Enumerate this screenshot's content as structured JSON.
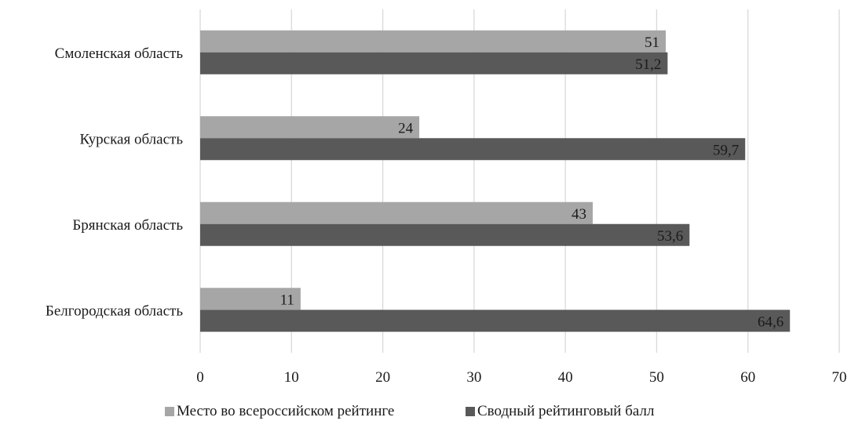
{
  "chart_data": {
    "type": "bar",
    "orientation": "horizontal",
    "categories": [
      "Смоленская область",
      "Курская область",
      "Брянская область",
      "Белгородская область"
    ],
    "series": [
      {
        "name": "Место во всероссийском рейтинге",
        "values": [
          51,
          24,
          43,
          11
        ],
        "labels": [
          "51",
          "24",
          "43",
          "11"
        ],
        "color": "#a6a6a6"
      },
      {
        "name": "Сводный рейтинговый балл",
        "values": [
          51.2,
          59.7,
          53.6,
          64.6
        ],
        "labels": [
          "51,2",
          "59,7",
          "53,6",
          "64,6"
        ],
        "color": "#595959"
      }
    ],
    "xlim": [
      0,
      70
    ],
    "xticks": [
      0,
      10,
      20,
      30,
      40,
      50,
      60,
      70
    ],
    "xtick_labels": [
      "0",
      "10",
      "20",
      "30",
      "40",
      "50",
      "60",
      "70"
    ],
    "grid": true,
    "legend_position": "bottom",
    "title": "",
    "xlabel": "",
    "ylabel": ""
  }
}
